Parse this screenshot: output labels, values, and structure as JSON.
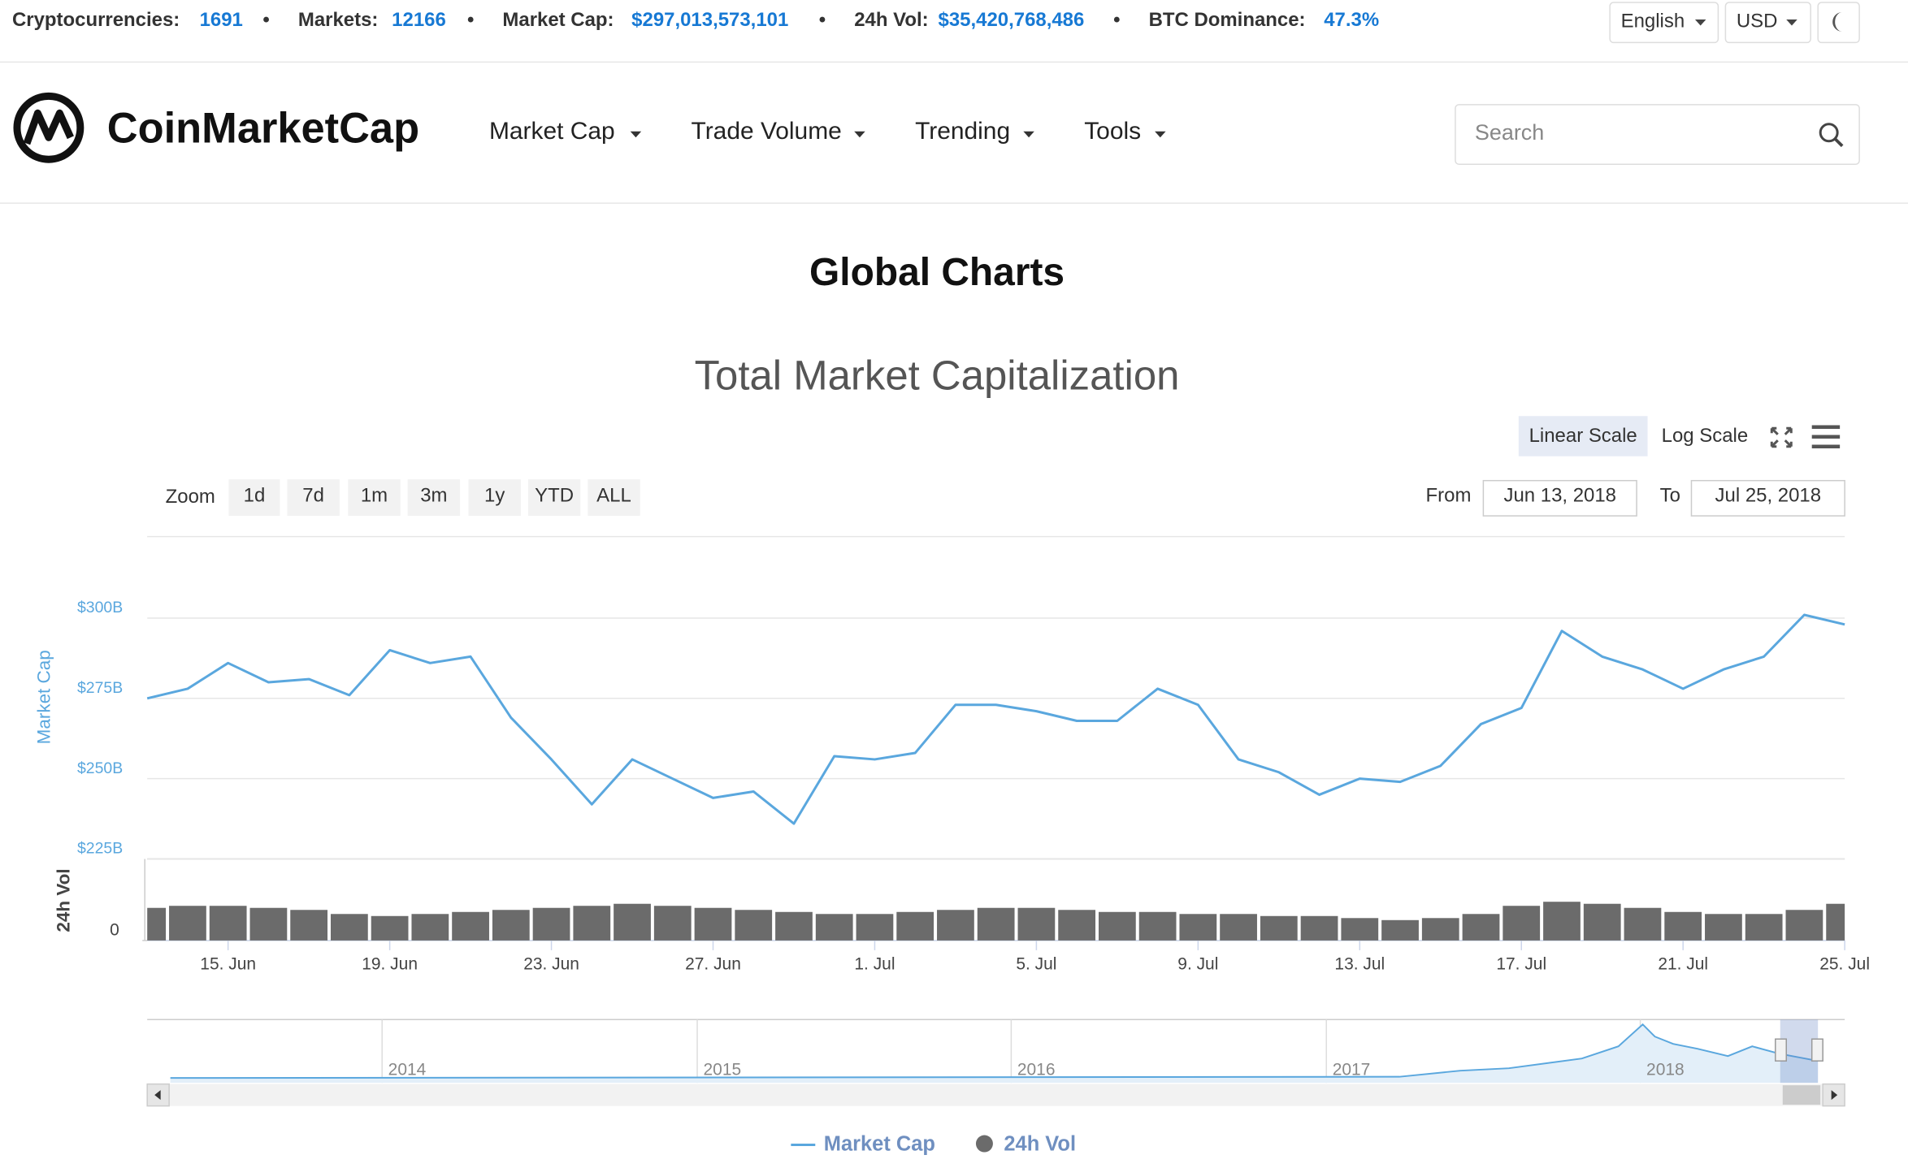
{
  "top_bar": {
    "stats": [
      {
        "label": "Cryptocurrencies:",
        "value": "1691"
      },
      {
        "label": "Markets:",
        "value": "12166"
      },
      {
        "label": "Market Cap:",
        "value": "$297,013,573,101"
      },
      {
        "label": "24h Vol:",
        "value": "$35,420,768,486"
      },
      {
        "label": "BTC Dominance:",
        "value": "47.3%"
      }
    ],
    "language": "English",
    "currency": "USD"
  },
  "nav": {
    "logo": "CoinMarketCap",
    "menu": [
      "Market Cap",
      "Trade Volume",
      "Trending",
      "Tools"
    ],
    "search_placeholder": "Search"
  },
  "page_title": "Global Charts",
  "controls": {
    "scales": [
      "Linear Scale",
      "Log Scale"
    ],
    "zoom_label": "Zoom",
    "zoom": [
      "1d",
      "7d",
      "1m",
      "3m",
      "1y",
      "YTD",
      "ALL"
    ],
    "from_label": "From",
    "from": "Jun 13, 2018",
    "to_label": "To",
    "to": "Jul 25, 2018"
  },
  "chart_data": {
    "type": "line",
    "title": "Total Market Capitalization",
    "ylabel": "Market Cap",
    "y2label": "24h Vol",
    "x": [
      "2018-06-13",
      "2018-06-14",
      "2018-06-15",
      "2018-06-16",
      "2018-06-17",
      "2018-06-18",
      "2018-06-19",
      "2018-06-20",
      "2018-06-21",
      "2018-06-22",
      "2018-06-23",
      "2018-06-24",
      "2018-06-25",
      "2018-06-26",
      "2018-06-27",
      "2018-06-28",
      "2018-06-29",
      "2018-06-30",
      "2018-07-01",
      "2018-07-02",
      "2018-07-03",
      "2018-07-04",
      "2018-07-05",
      "2018-07-06",
      "2018-07-07",
      "2018-07-08",
      "2018-07-09",
      "2018-07-10",
      "2018-07-11",
      "2018-07-12",
      "2018-07-13",
      "2018-07-14",
      "2018-07-15",
      "2018-07-16",
      "2018-07-17",
      "2018-07-18",
      "2018-07-19",
      "2018-07-20",
      "2018-07-21",
      "2018-07-22",
      "2018-07-23",
      "2018-07-24",
      "2018-07-25"
    ],
    "xlim": [
      "2018-06-13",
      "2018-07-25"
    ],
    "xticks": [
      {
        "value": "2018-06-15",
        "label": "15. Jun"
      },
      {
        "value": "2018-06-19",
        "label": "19. Jun"
      },
      {
        "value": "2018-06-23",
        "label": "23. Jun"
      },
      {
        "value": "2018-06-27",
        "label": "27. Jun"
      },
      {
        "value": "2018-07-01",
        "label": "1. Jul"
      },
      {
        "value": "2018-07-05",
        "label": "5. Jul"
      },
      {
        "value": "2018-07-09",
        "label": "9. Jul"
      },
      {
        "value": "2018-07-13",
        "label": "13. Jul"
      },
      {
        "value": "2018-07-17",
        "label": "17. Jul"
      },
      {
        "value": "2018-07-21",
        "label": "21. Jul"
      },
      {
        "value": "2018-07-25",
        "label": "25. Jul"
      }
    ],
    "ylim": [
      225,
      325
    ],
    "yticks": [
      {
        "value": 225,
        "label": "$225B"
      },
      {
        "value": 250,
        "label": "$250B"
      },
      {
        "value": 275,
        "label": "$275B"
      },
      {
        "value": 300,
        "label": "$300B"
      }
    ],
    "y2lim": [
      0,
      40
    ],
    "y2ticks": [
      0
    ],
    "grid": true,
    "series": [
      {
        "name": "Market Cap",
        "color": "#5aa7de",
        "values": [
          275,
          278,
          286,
          280,
          281,
          276,
          290,
          286,
          288,
          269,
          256,
          242,
          256,
          250,
          244,
          246,
          236,
          257,
          256,
          258,
          273,
          273,
          271,
          268,
          268,
          278,
          273,
          256,
          252,
          245,
          250,
          249,
          254,
          267,
          272,
          296,
          288,
          284,
          278,
          284,
          288,
          301,
          298
        ]
      },
      {
        "name": "24h Vol",
        "color": "#6b6b6b",
        "type": "bar",
        "axis": "y2",
        "values": [
          16,
          17,
          17,
          16,
          15,
          13,
          12,
          13,
          14,
          15,
          16,
          17,
          18,
          17,
          16,
          15,
          14,
          13,
          13,
          14,
          15,
          16,
          16,
          15,
          14,
          14,
          13,
          13,
          12,
          12,
          11,
          10,
          11,
          13,
          17,
          19,
          18,
          16,
          14,
          13,
          13,
          15,
          18
        ]
      }
    ]
  },
  "navigator": {
    "labels": [
      "2014",
      "2015",
      "2016",
      "2017",
      "2018"
    ]
  }
}
